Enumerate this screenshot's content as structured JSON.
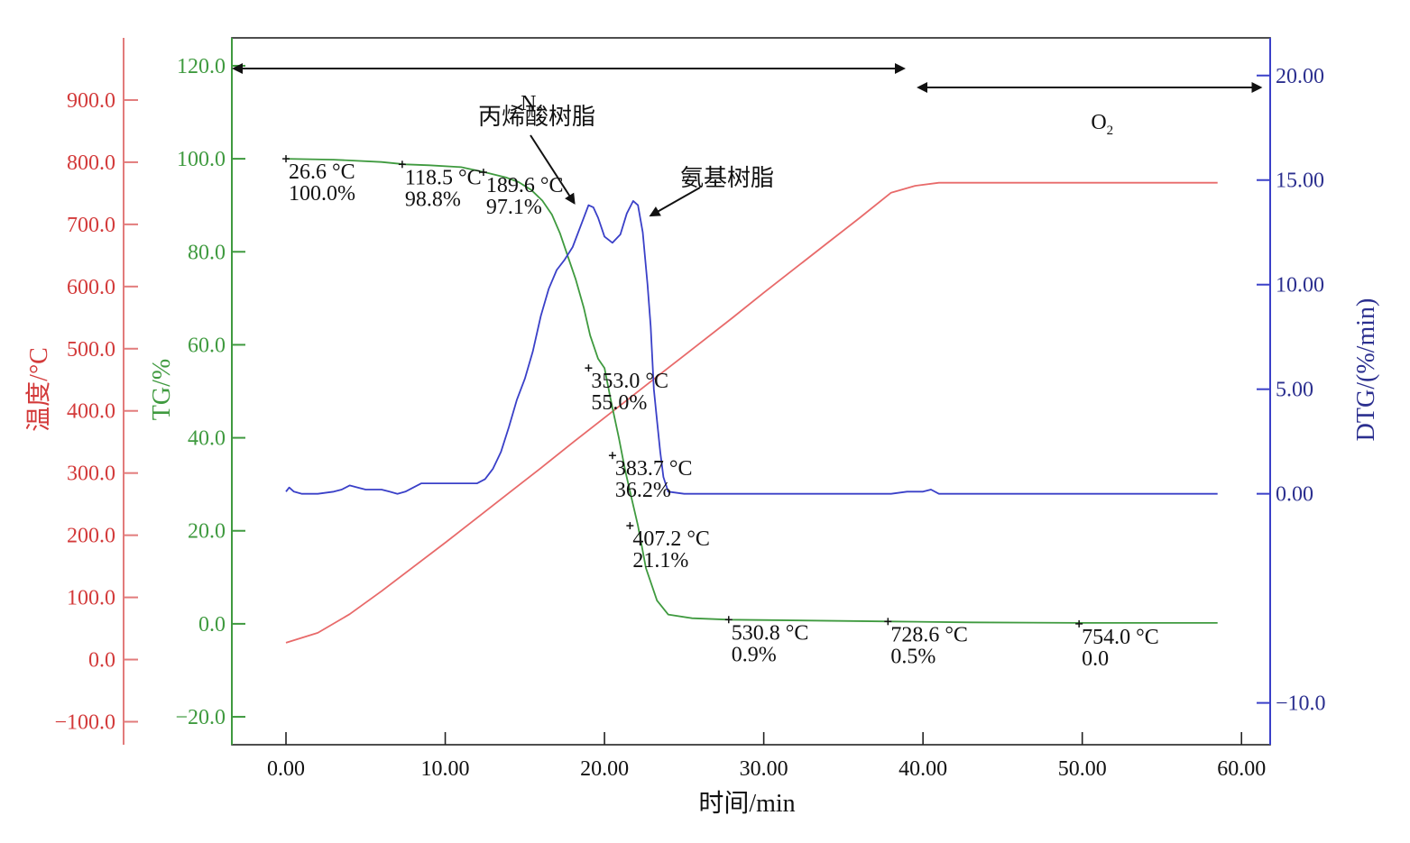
{
  "chart_data": {
    "type": "line",
    "xlabel": "时间/min",
    "x_ticks": [
      "0.00",
      "10.00",
      "20.00",
      "30.00",
      "40.00",
      "50.00",
      "60.00"
    ],
    "xlim": [
      -3.4,
      61.8
    ],
    "axes": {
      "temperature": {
        "label": "温度/°C",
        "color": "#d33a3a",
        "ticks": [
          "900.0",
          "800.0",
          "700.0",
          "600.0",
          "500.0",
          "400.0",
          "300.0",
          "200.0",
          "100.0",
          "0.0",
          "−100.0"
        ],
        "tick_values": [
          900,
          800,
          700,
          600,
          500,
          400,
          300,
          200,
          100,
          0,
          -100
        ],
        "ylim": [
          -137,
          1000
        ]
      },
      "tg": {
        "label": "TG/%",
        "color": "#3f9a3f",
        "ticks": [
          "120.0",
          "100.0",
          "80.0",
          "60.0",
          "40.0",
          "20.0",
          "0.0",
          "−20.0"
        ],
        "tick_values": [
          120,
          100,
          80,
          60,
          40,
          20,
          0,
          -20
        ],
        "ylim": [
          -26,
          126
        ]
      },
      "dtg": {
        "label": "DTG/(%/min)",
        "color": "#2b2f8f",
        "ticks": [
          "20.00",
          "15.00",
          "10.00",
          "5.00",
          "0.00",
          "−10.0"
        ],
        "tick_values": [
          20,
          15,
          10,
          5,
          0,
          -10
        ],
        "ylim": [
          -12.0,
          21.8
        ]
      }
    },
    "series": [
      {
        "axis": "temperature",
        "color": "#e86a6a",
        "x": [
          0,
          2,
          4,
          6,
          8,
          10,
          12,
          14,
          16,
          18,
          20,
          22,
          24,
          26,
          28,
          30,
          32,
          34,
          36,
          38,
          39.5,
          41,
          42,
          45,
          50,
          55,
          58.5
        ],
        "y": [
          27,
          43,
          73,
          110,
          149,
          188,
          228,
          268,
          308,
          349,
          389,
          429,
          469,
          509,
          549,
          590,
          630,
          670,
          710,
          751,
          762,
          767,
          767,
          767,
          767,
          767,
          767
        ]
      },
      {
        "axis": "tg",
        "color": "#3f9a3f",
        "x": [
          0,
          3,
          6,
          7.5,
          9,
          11,
          12.5,
          13.8,
          14.6,
          15.4,
          16.1,
          16.7,
          17.2,
          17.7,
          18.2,
          18.7,
          19.1,
          19.6,
          20.0,
          20.4,
          20.9,
          21.3,
          21.7,
          22.1,
          22.6,
          23.3,
          24.0,
          25.5,
          27.8,
          33,
          38,
          43,
          50,
          58.5
        ],
        "y": [
          100.0,
          99.8,
          99.3,
          98.8,
          98.6,
          98.2,
          97.1,
          96.0,
          95.0,
          93.3,
          91.0,
          88.0,
          84.0,
          79.0,
          74.0,
          68.0,
          62.0,
          57.0,
          55.0,
          48.0,
          40.0,
          33.0,
          27.0,
          21.1,
          12.0,
          5.0,
          2.0,
          1.2,
          0.9,
          0.7,
          0.5,
          0.3,
          0.2,
          0.2
        ]
      },
      {
        "axis": "dtg",
        "color": "#3a40c8",
        "x": [
          0,
          0.2,
          0.5,
          1,
          2,
          3,
          3.5,
          4,
          4.5,
          5,
          6,
          6.5,
          7,
          7.5,
          8,
          8.5,
          9,
          10,
          11,
          12,
          12.5,
          13,
          13.5,
          14,
          14.5,
          15,
          15.5,
          16,
          16.5,
          17,
          17.5,
          18,
          18.5,
          19,
          19.3,
          19.6,
          20,
          20.5,
          21,
          21.4,
          21.8,
          22.1,
          22.4,
          22.7,
          22.9,
          23.1,
          23.3,
          23.5,
          23.7,
          24,
          25,
          28,
          30,
          35,
          38,
          39,
          40,
          40.5,
          41,
          41.5,
          42,
          45,
          50,
          55,
          58.5
        ],
        "y": [
          0.1,
          0.3,
          0.1,
          0.0,
          0.0,
          0.1,
          0.2,
          0.4,
          0.3,
          0.2,
          0.2,
          0.1,
          0.0,
          0.1,
          0.3,
          0.5,
          0.5,
          0.5,
          0.5,
          0.5,
          0.7,
          1.2,
          2.0,
          3.2,
          4.5,
          5.5,
          6.8,
          8.5,
          9.8,
          10.7,
          11.2,
          11.8,
          12.8,
          13.8,
          13.7,
          13.2,
          12.3,
          12.0,
          12.4,
          13.4,
          14.0,
          13.8,
          12.5,
          10.0,
          8.0,
          5.0,
          3.5,
          2.0,
          0.8,
          0.1,
          0.0,
          0.0,
          0.0,
          0.0,
          0.0,
          0.1,
          0.1,
          0.2,
          0.0,
          0.0,
          0.0,
          0.0,
          0.0,
          0.0,
          0.0
        ]
      }
    ],
    "markers": [
      {
        "x": 0.0,
        "tg": 100.0,
        "label_line1": "26.6 °C",
        "label_line2": "100.0%"
      },
      {
        "x": 7.3,
        "tg": 98.8,
        "label_line1": "118.5 °C",
        "label_line2": "98.8%"
      },
      {
        "x": 12.4,
        "tg": 97.1,
        "label_line1": "189.6 °C",
        "label_line2": "97.1%"
      },
      {
        "x": 19.0,
        "tg": 55.0,
        "label_line1": "353.0 °C",
        "label_line2": "55.0%"
      },
      {
        "x": 20.5,
        "tg": 36.2,
        "label_line1": "383.7 °C",
        "label_line2": "36.2%"
      },
      {
        "x": 21.6,
        "tg": 21.1,
        "label_line1": "407.2 °C",
        "label_line2": "21.1%"
      },
      {
        "x": 27.8,
        "tg": 0.9,
        "label_line1": "530.8 °C",
        "label_line2": "0.9%"
      },
      {
        "x": 37.8,
        "tg": 0.5,
        "label_line1": "728.6 °C",
        "label_line2": "0.5%"
      },
      {
        "x": 49.8,
        "tg": 0.0,
        "label_line1": "754.0 °C",
        "label_line2": "0.0"
      }
    ],
    "atmosphere": [
      {
        "name": "N",
        "sub": "2",
        "x_start": -3.4,
        "x_end": 38.8
      },
      {
        "name": "O",
        "sub": "2",
        "x_start": 39.6,
        "x_end": 61.2
      }
    ],
    "annotations": [
      {
        "text": "丙烯酸树脂",
        "arrow_to": [
          18.1,
          13.9
        ]
      },
      {
        "text": "氨基树脂",
        "arrow_to": [
          22.9,
          13.3
        ]
      }
    ]
  }
}
